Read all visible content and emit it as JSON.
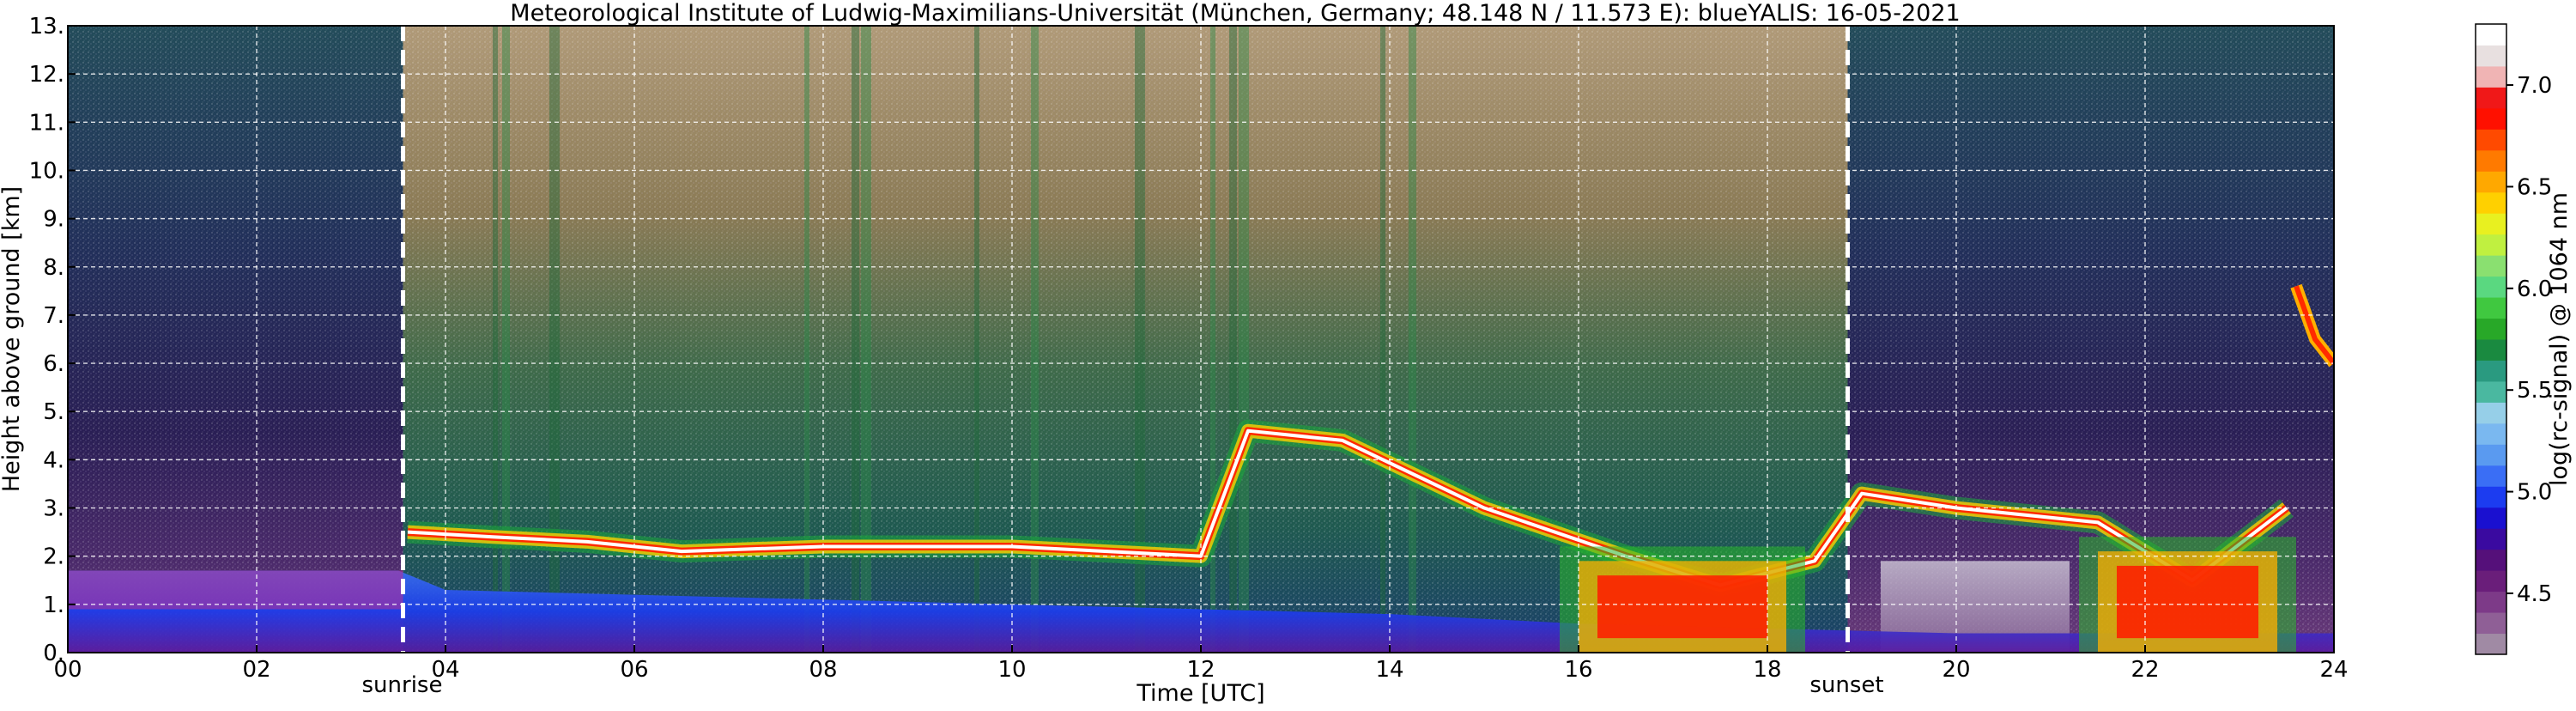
{
  "chart_data": {
    "type": "heatmap",
    "title": "Meteorological Institute of Ludwig-Maximilians-Universität (München, Germany; 48.148 N / 11.573 E):    blueYALIS: 16-05-2021",
    "xlabel": "Time [UTC]",
    "ylabel": "Height above ground [km]",
    "xlim": [
      0,
      24
    ],
    "ylim": [
      0,
      13
    ],
    "x_ticks": [
      {
        "value": 0,
        "label": "00"
      },
      {
        "value": 2,
        "label": "02"
      },
      {
        "value": 4,
        "label": "04"
      },
      {
        "value": 6,
        "label": "06"
      },
      {
        "value": 8,
        "label": "08"
      },
      {
        "value": 10,
        "label": "10"
      },
      {
        "value": 12,
        "label": "12"
      },
      {
        "value": 14,
        "label": "14"
      },
      {
        "value": 16,
        "label": "16"
      },
      {
        "value": 18,
        "label": "18"
      },
      {
        "value": 20,
        "label": "20"
      },
      {
        "value": 22,
        "label": "22"
      },
      {
        "value": 24,
        "label": "24"
      }
    ],
    "y_ticks": [
      {
        "value": 0,
        "label": "0."
      },
      {
        "value": 1,
        "label": "1."
      },
      {
        "value": 2,
        "label": "2."
      },
      {
        "value": 3,
        "label": "3."
      },
      {
        "value": 4,
        "label": "4."
      },
      {
        "value": 5,
        "label": "5."
      },
      {
        "value": 6,
        "label": "6."
      },
      {
        "value": 7,
        "label": "7."
      },
      {
        "value": 8,
        "label": "8."
      },
      {
        "value": 9,
        "label": "9."
      },
      {
        "value": 10,
        "label": "10."
      },
      {
        "value": 11,
        "label": "11."
      },
      {
        "value": 12,
        "label": "12."
      },
      {
        "value": 13,
        "label": "13."
      }
    ],
    "grid": true,
    "annotations": [
      {
        "label": "sunrise",
        "x": 3.55
      },
      {
        "label": "sunset",
        "x": 18.85
      }
    ],
    "colorbar": {
      "label": "log(rc-signal) @ 1064 nm",
      "range": [
        4.2,
        7.3
      ],
      "ticks": [
        {
          "value": 4.5,
          "label": "4.5"
        },
        {
          "value": 5.0,
          "label": "5.0"
        },
        {
          "value": 5.5,
          "label": "5.5"
        },
        {
          "value": 6.0,
          "label": "6.0"
        },
        {
          "value": 6.5,
          "label": "6.5"
        },
        {
          "value": 7.0,
          "label": "7.0"
        }
      ],
      "colors": [
        "#a08aa4",
        "#8f5f96",
        "#7d3a88",
        "#6a1e7a",
        "#55107a",
        "#3a0aa0",
        "#1a10d0",
        "#1c3cf0",
        "#3a6ef5",
        "#5a9af0",
        "#7ab8f0",
        "#96cfe8",
        "#4ab8a0",
        "#2a9a80",
        "#1a8a40",
        "#28a828",
        "#40c840",
        "#5ad880",
        "#8ae070",
        "#c0f040",
        "#e8f020",
        "#ffd000",
        "#ffa800",
        "#ff7a00",
        "#ff4a00",
        "#ff1000",
        "#f01818",
        "#f0b4b4",
        "#e8e0e0",
        "#ffffff"
      ]
    },
    "layers": [
      {
        "name": "boundary-layer",
        "x": [
          0,
          2,
          3.5,
          4,
          6,
          8,
          10,
          12,
          14,
          16,
          18,
          20,
          22,
          24
        ],
        "top_km": [
          1.7,
          1.7,
          1.7,
          1.3,
          1.2,
          1.1,
          1.0,
          0.9,
          0.8,
          0.6,
          0.5,
          0.4,
          0.4,
          0.4
        ]
      },
      {
        "name": "aerosol-layer-top",
        "x": [
          3.6,
          4.5,
          5.5,
          6.5,
          8,
          10,
          12,
          12.5,
          13.5,
          15,
          16.5,
          17.5,
          18.5,
          19,
          20,
          21.5,
          22.5,
          23.5
        ],
        "y_km": [
          2.5,
          2.4,
          2.3,
          2.1,
          2.2,
          2.2,
          2.0,
          4.6,
          4.4,
          3.0,
          2.0,
          1.4,
          1.9,
          3.3,
          3.0,
          2.7,
          1.5,
          3.0
        ]
      },
      {
        "name": "elevated-aerosol",
        "x": [
          23.6,
          23.8,
          24
        ],
        "y_km": [
          7.6,
          6.5,
          6.0
        ]
      }
    ]
  }
}
